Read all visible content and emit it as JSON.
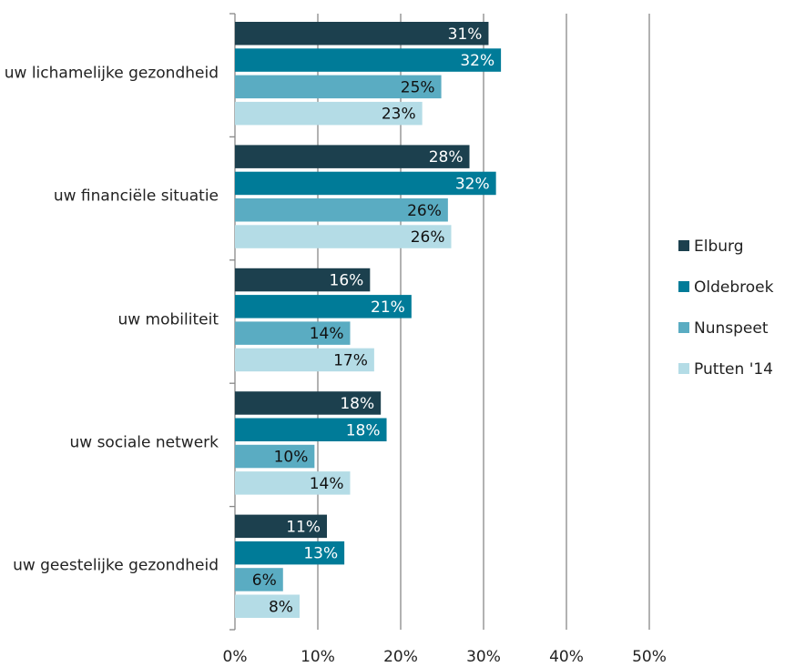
{
  "chart_data": {
    "type": "barh",
    "categories": [
      "uw lichamelijke gezondheid",
      "uw financiële situatie",
      "uw mobiliteit",
      "uw sociale netwerk",
      "uw geestelijke gezondheid"
    ],
    "series": [
      {
        "name": "Elburg",
        "color": "#1c404e",
        "values": [
          30.6,
          28.3,
          16.3,
          17.6,
          11.1
        ],
        "value_labels": [
          "31%",
          "28%",
          "16%",
          "18%",
          "11%"
        ]
      },
      {
        "name": "Oldebroek",
        "color": "#007b98",
        "values": [
          32.1,
          31.5,
          21.3,
          18.3,
          13.2
        ],
        "value_labels": [
          "32%",
          "32%",
          "21%",
          "18%",
          "13%"
        ]
      },
      {
        "name": "Nunspeet",
        "color": "#5aacc2",
        "values": [
          24.9,
          25.7,
          13.9,
          9.6,
          5.8
        ],
        "value_labels": [
          "25%",
          "26%",
          "14%",
          "10%",
          "6%"
        ]
      },
      {
        "name": "Putten '14",
        "color": "#b4dce6",
        "values": [
          22.6,
          26.1,
          16.8,
          13.9,
          7.8
        ],
        "value_labels": [
          "23%",
          "26%",
          "17%",
          "14%",
          "8%"
        ]
      }
    ],
    "xlim": [
      0,
      50
    ],
    "xticks": [
      {
        "value": 0,
        "label": "0%"
      },
      {
        "value": 10,
        "label": "10%"
      },
      {
        "value": 20,
        "label": "20%"
      },
      {
        "value": 30,
        "label": "30%"
      },
      {
        "value": 40,
        "label": "40%"
      },
      {
        "value": 50,
        "label": "50%"
      }
    ],
    "grid": true,
    "legend": "right"
  }
}
